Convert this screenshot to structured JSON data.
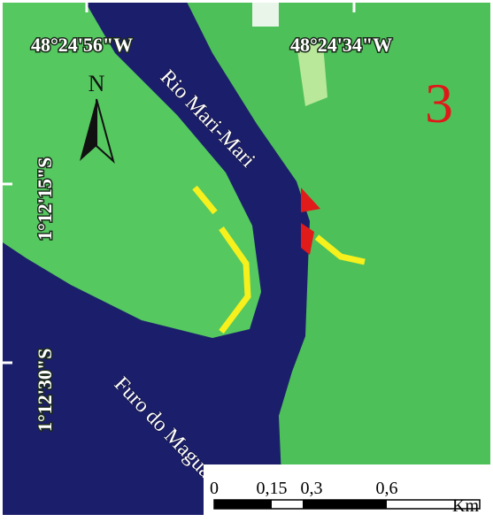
{
  "map": {
    "panel_number": "3",
    "north_arrow": "N",
    "lon_labels": [
      "48°24'56\"W",
      "48°24'34\"W"
    ],
    "lat_labels": [
      "1°12'15\"S",
      "1°12'30\"S"
    ],
    "rivers": [
      "Rio Mari-Mari",
      "Furo do Maguarí"
    ],
    "scale_bar": {
      "labels": [
        "0",
        "0,15",
        "0,3",
        "0,6"
      ],
      "unit": "Km"
    }
  }
}
